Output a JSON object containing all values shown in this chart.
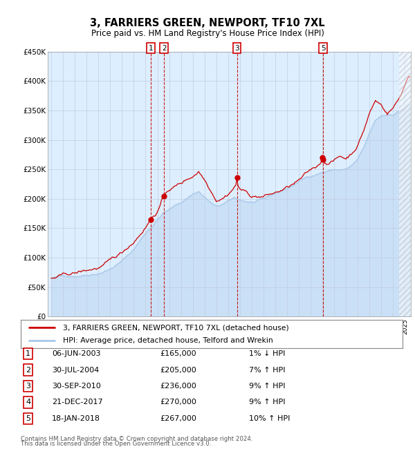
{
  "title": "3, FARRIERS GREEN, NEWPORT, TF10 7XL",
  "subtitle": "Price paid vs. HM Land Registry's House Price Index (HPI)",
  "legend_line1": "3, FARRIERS GREEN, NEWPORT, TF10 7XL (detached house)",
  "legend_line2": "HPI: Average price, detached house, Telford and Wrekin",
  "footer1": "Contains HM Land Registry data © Crown copyright and database right 2024.",
  "footer2": "This data is licensed under the Open Government Licence v3.0.",
  "hpi_color": "#a8c8e8",
  "price_color": "#cc0000",
  "bg_color": "#ddeeff",
  "grid_color": "#c0cce0",
  "sale_points": [
    {
      "num": 1,
      "date_x": 2003.44,
      "price": 165000,
      "date_str": "06-JUN-2003",
      "pct": "1%",
      "dir": "↓",
      "show_label": true
    },
    {
      "num": 2,
      "date_x": 2004.58,
      "price": 205000,
      "date_str": "30-JUL-2004",
      "pct": "7%",
      "dir": "↑",
      "show_label": true
    },
    {
      "num": 3,
      "date_x": 2010.75,
      "price": 236000,
      "date_str": "30-SEP-2010",
      "pct": "9%",
      "dir": "↑",
      "show_label": true
    },
    {
      "num": 4,
      "date_x": 2017.97,
      "price": 270000,
      "date_str": "21-DEC-2017",
      "pct": "9%",
      "dir": "↑",
      "show_label": false
    },
    {
      "num": 5,
      "date_x": 2018.05,
      "price": 267000,
      "date_str": "18-JAN-2018",
      "pct": "10%",
      "dir": "↑",
      "show_label": true
    }
  ],
  "table_rows": [
    {
      "num": "1",
      "date": "06-JUN-2003",
      "price": "£165,000",
      "pct": "1% ↓ HPI"
    },
    {
      "num": "2",
      "date": "30-JUL-2004",
      "price": "£205,000",
      "pct": "7% ↑ HPI"
    },
    {
      "num": "3",
      "date": "30-SEP-2010",
      "price": "£236,000",
      "pct": "9% ↑ HPI"
    },
    {
      "num": "4",
      "date": "21-DEC-2017",
      "price": "£270,000",
      "pct": "9% ↑ HPI"
    },
    {
      "num": "5",
      "date": "18-JAN-2018",
      "price": "£267,000",
      "pct": "10% ↑ HPI"
    }
  ],
  "ylim": [
    0,
    450000
  ],
  "xlim_start": 1994.7,
  "xlim_end": 2025.5,
  "yticks": [
    0,
    50000,
    100000,
    150000,
    200000,
    250000,
    300000,
    350000,
    400000,
    450000
  ],
  "ytick_labels": [
    "£0",
    "£50K",
    "£100K",
    "£150K",
    "£200K",
    "£250K",
    "£300K",
    "£350K",
    "£400K",
    "£450K"
  ],
  "hpi_anchors": [
    [
      1995.0,
      65000
    ],
    [
      1996.0,
      68000
    ],
    [
      1997.0,
      70000
    ],
    [
      1998.0,
      74000
    ],
    [
      1999.0,
      79000
    ],
    [
      2000.0,
      87000
    ],
    [
      2001.0,
      100000
    ],
    [
      2002.0,
      120000
    ],
    [
      2003.0,
      148000
    ],
    [
      2004.0,
      172000
    ],
    [
      2004.5,
      183000
    ],
    [
      2005.0,
      188000
    ],
    [
      2006.0,
      200000
    ],
    [
      2007.0,
      215000
    ],
    [
      2007.5,
      220000
    ],
    [
      2008.0,
      210000
    ],
    [
      2009.0,
      192000
    ],
    [
      2009.5,
      196000
    ],
    [
      2010.0,
      200000
    ],
    [
      2010.5,
      205000
    ],
    [
      2011.0,
      202000
    ],
    [
      2012.0,
      198000
    ],
    [
      2013.0,
      200000
    ],
    [
      2014.0,
      210000
    ],
    [
      2015.0,
      218000
    ],
    [
      2016.0,
      230000
    ],
    [
      2017.0,
      240000
    ],
    [
      2018.0,
      248000
    ],
    [
      2018.5,
      250000
    ],
    [
      2019.0,
      252000
    ],
    [
      2020.0,
      252000
    ],
    [
      2020.5,
      258000
    ],
    [
      2021.0,
      268000
    ],
    [
      2021.5,
      285000
    ],
    [
      2022.0,
      310000
    ],
    [
      2022.5,
      330000
    ],
    [
      2023.0,
      338000
    ],
    [
      2023.5,
      340000
    ],
    [
      2024.0,
      342000
    ],
    [
      2024.5,
      348000
    ],
    [
      2025.3,
      358000
    ]
  ],
  "price_anchors": [
    [
      1995.0,
      65000
    ],
    [
      1996.0,
      68000
    ],
    [
      1997.0,
      71000
    ],
    [
      1998.0,
      75000
    ],
    [
      1999.0,
      80000
    ],
    [
      2000.0,
      88000
    ],
    [
      2001.0,
      101000
    ],
    [
      2002.0,
      122000
    ],
    [
      2003.0,
      150000
    ],
    [
      2003.44,
      165000
    ],
    [
      2004.0,
      178000
    ],
    [
      2004.58,
      205000
    ],
    [
      2005.0,
      215000
    ],
    [
      2006.0,
      225000
    ],
    [
      2007.0,
      238000
    ],
    [
      2007.5,
      248000
    ],
    [
      2008.0,
      235000
    ],
    [
      2009.0,
      205000
    ],
    [
      2009.5,
      210000
    ],
    [
      2010.0,
      218000
    ],
    [
      2010.75,
      236000
    ],
    [
      2011.0,
      228000
    ],
    [
      2012.0,
      215000
    ],
    [
      2013.0,
      215000
    ],
    [
      2014.0,
      220000
    ],
    [
      2015.0,
      228000
    ],
    [
      2016.0,
      238000
    ],
    [
      2017.0,
      252000
    ],
    [
      2017.5,
      258000
    ],
    [
      2017.97,
      270000
    ],
    [
      2018.05,
      267000
    ],
    [
      2018.5,
      268000
    ],
    [
      2019.0,
      272000
    ],
    [
      2019.5,
      278000
    ],
    [
      2020.0,
      275000
    ],
    [
      2020.5,
      285000
    ],
    [
      2021.0,
      300000
    ],
    [
      2021.5,
      325000
    ],
    [
      2022.0,
      355000
    ],
    [
      2022.5,
      375000
    ],
    [
      2023.0,
      368000
    ],
    [
      2023.5,
      355000
    ],
    [
      2024.0,
      365000
    ],
    [
      2024.5,
      380000
    ],
    [
      2025.3,
      420000
    ]
  ]
}
